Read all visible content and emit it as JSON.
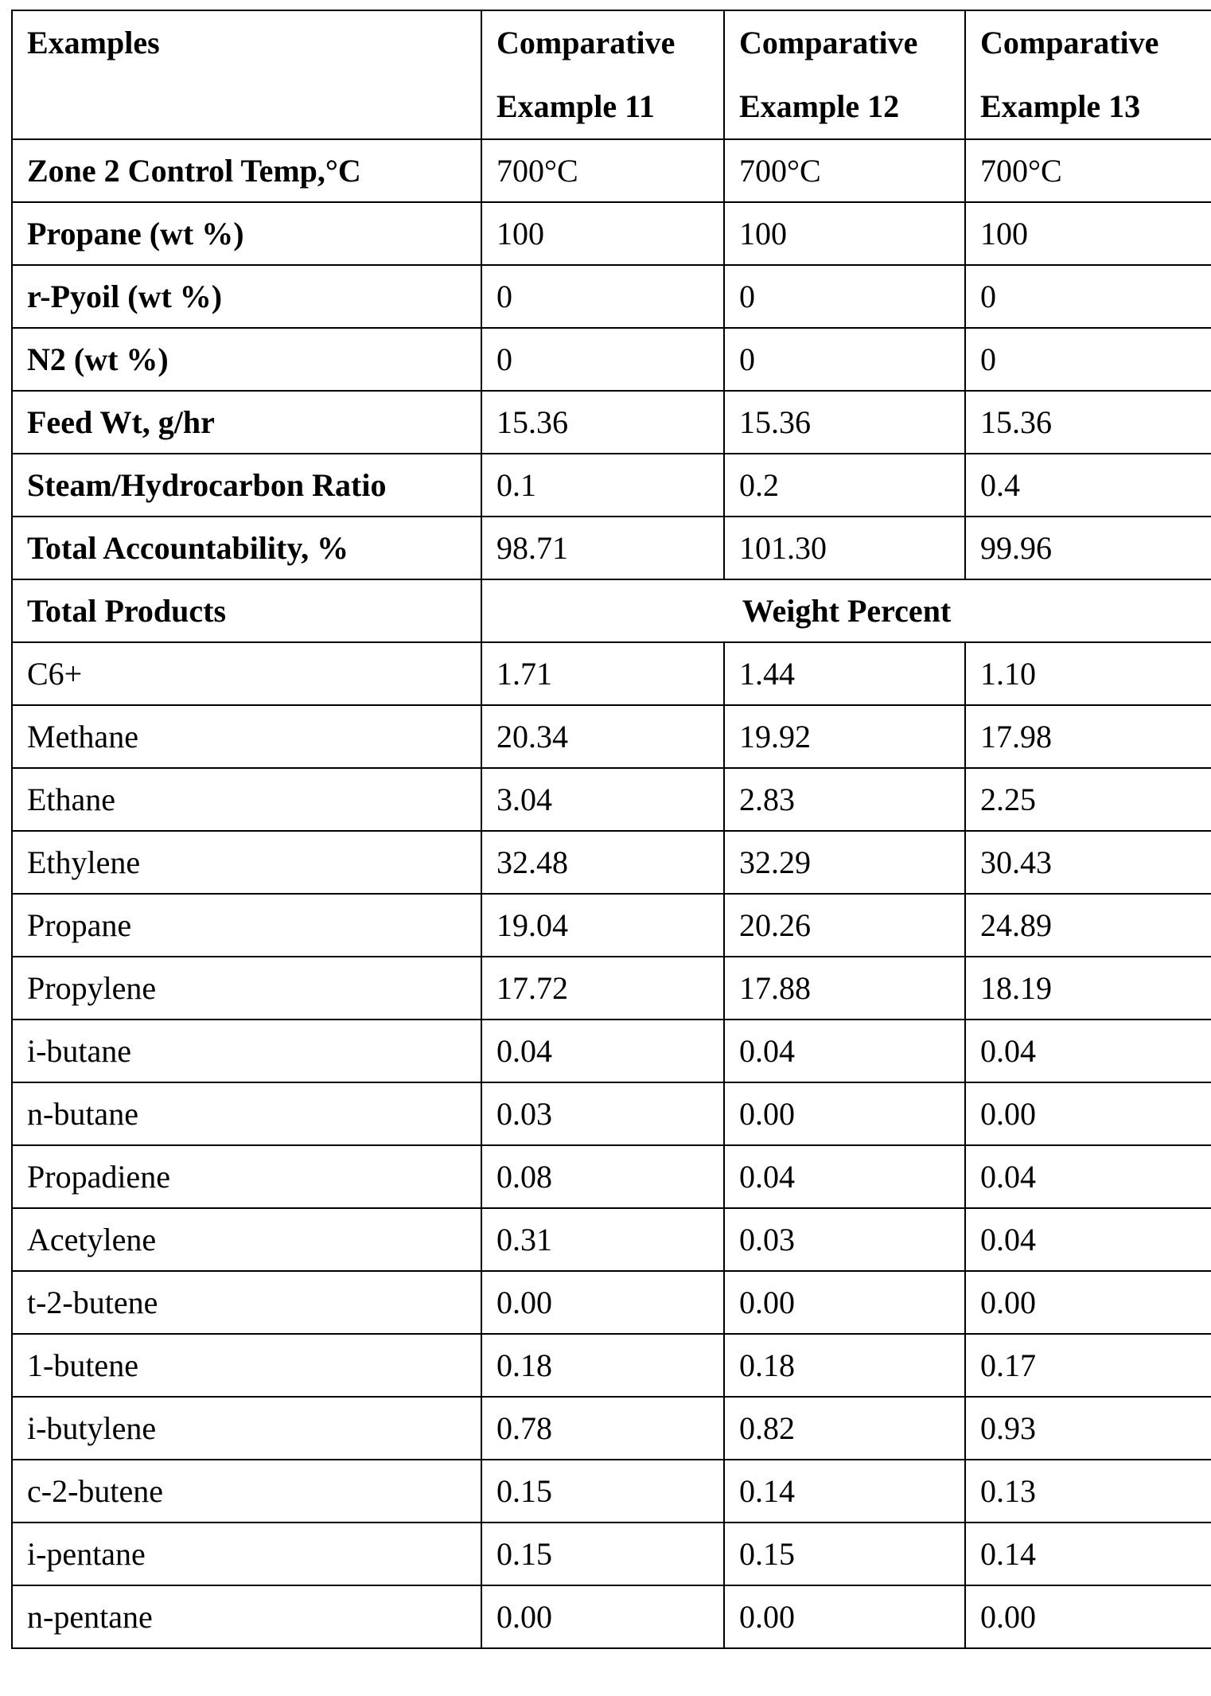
{
  "table": {
    "header": {
      "label": "Examples",
      "columns": [
        "Comparative Example 11",
        "Comparative Example 12",
        "Comparative Example 13"
      ]
    },
    "conditions": [
      {
        "label": "Zone 2 Control Temp,°C",
        "values": [
          "700°C",
          "700°C",
          "700°C"
        ]
      },
      {
        "label": "Propane (wt %)",
        "values": [
          "100",
          "100",
          "100"
        ]
      },
      {
        "label": "r-Pyoil (wt %)",
        "values": [
          "0",
          "0",
          "0"
        ]
      },
      {
        "label": "N2  (wt %)",
        "values": [
          "0",
          "0",
          "0"
        ]
      },
      {
        "label": "Feed Wt, g/hr",
        "values": [
          "15.36",
          "15.36",
          "15.36"
        ]
      },
      {
        "label": "Steam/Hydrocarbon Ratio",
        "values": [
          "0.1",
          "0.2",
          "0.4"
        ]
      },
      {
        "label": "Total Accountability, %",
        "values": [
          "98.71",
          "101.30",
          "99.96"
        ]
      }
    ],
    "products_header": {
      "label": "Total Products",
      "unit": "Weight Percent"
    },
    "products": [
      {
        "label": "C6+",
        "values": [
          "1.71",
          "1.44",
          "1.10"
        ]
      },
      {
        "label": "Methane",
        "values": [
          "20.34",
          "19.92",
          "17.98"
        ]
      },
      {
        "label": "Ethane",
        "values": [
          "3.04",
          "2.83",
          "2.25"
        ]
      },
      {
        "label": "Ethylene",
        "values": [
          "32.48",
          "32.29",
          "30.43"
        ]
      },
      {
        "label": "Propane",
        "values": [
          "19.04",
          "20.26",
          "24.89"
        ]
      },
      {
        "label": "Propylene",
        "values": [
          "17.72",
          "17.88",
          "18.19"
        ]
      },
      {
        "label": "i-butane",
        "values": [
          "0.04",
          "0.04",
          "0.04"
        ]
      },
      {
        "label": "n-butane",
        "values": [
          "0.03",
          "0.00",
          "0.00"
        ]
      },
      {
        "label": "Propadiene",
        "values": [
          "0.08",
          "0.04",
          "0.04"
        ]
      },
      {
        "label": "Acetylene",
        "values": [
          "0.31",
          "0.03",
          "0.04"
        ]
      },
      {
        "label": "t-2-butene",
        "values": [
          "0.00",
          "0.00",
          "0.00"
        ]
      },
      {
        "label": "1-butene",
        "values": [
          "0.18",
          "0.18",
          "0.17"
        ]
      },
      {
        "label": "i-butylene",
        "values": [
          "0.78",
          "0.82",
          "0.93"
        ]
      },
      {
        "label": "c-2-butene",
        "values": [
          "0.15",
          "0.14",
          "0.13"
        ]
      },
      {
        "label": "i-pentane",
        "values": [
          "0.15",
          "0.15",
          "0.14"
        ]
      },
      {
        "label": "n-pentane",
        "values": [
          "0.00",
          "0.00",
          "0.00"
        ]
      }
    ]
  }
}
